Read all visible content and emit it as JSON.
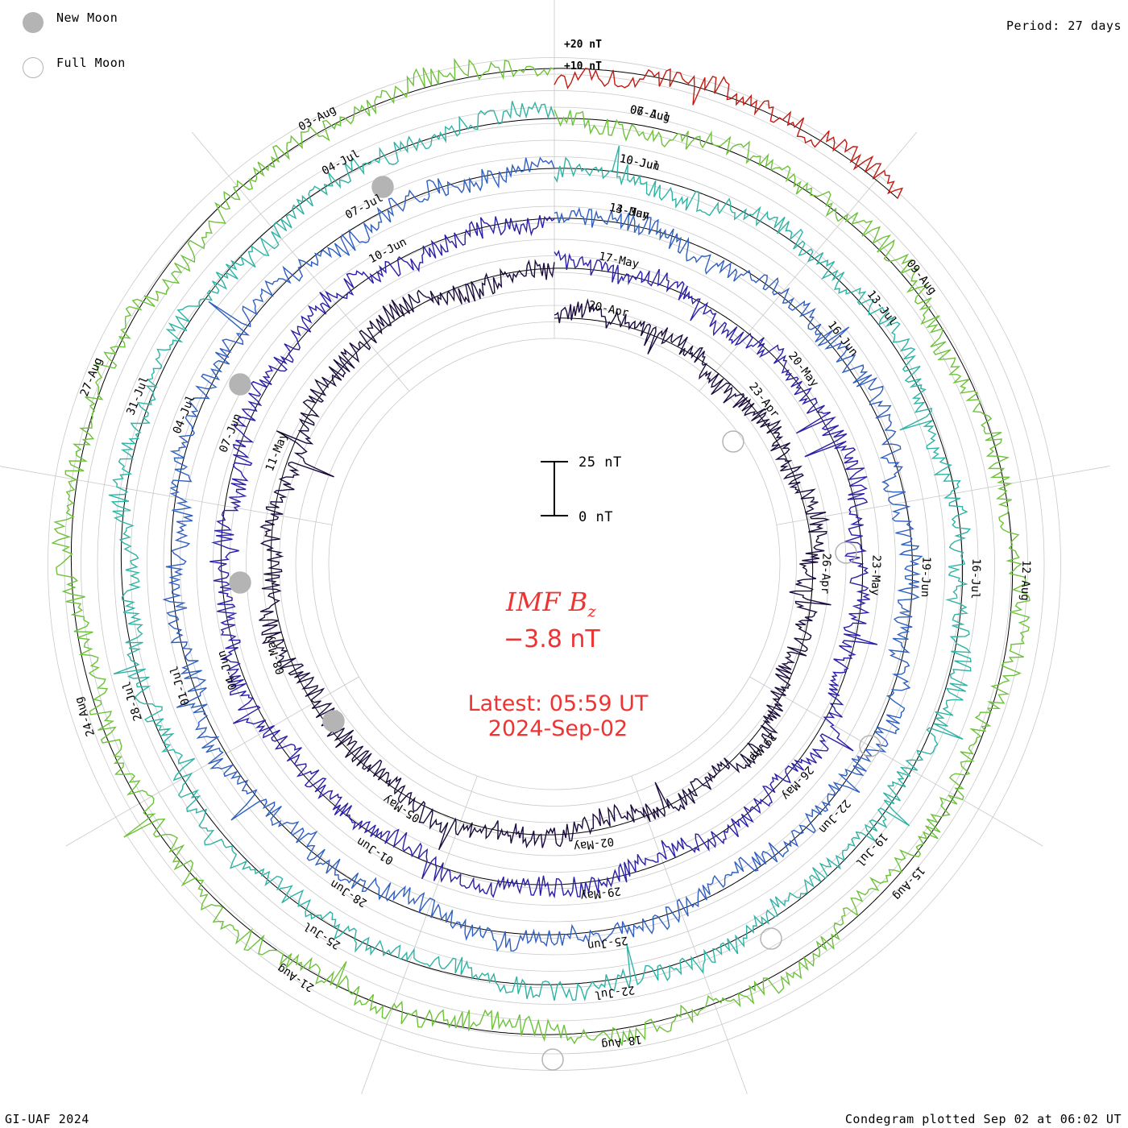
{
  "legend": {
    "new_moon_label": "New Moon",
    "full_moon_label": "Full Moon"
  },
  "period_label": "Period: 27 days",
  "footer": {
    "left": "GI-UAF 2024",
    "right": "Condegram plotted Sep 02 at 06:02 UT"
  },
  "center": {
    "title_main": "IMF B",
    "title_sub": "z",
    "value": "−3.8 nT",
    "latest_line1": "Latest: 05:59 UT",
    "latest_line2": "2024-Sep-02"
  },
  "scale_bar": {
    "top_label": "25 nT",
    "bottom_label": "0 nT"
  },
  "ring_scale": {
    "label_20": "+20 nT",
    "label_10": "+10 nT"
  },
  "chart_data": {
    "type": "line",
    "title": "IMF Bz",
    "period_days": 27,
    "latest_value_nT": -3.8,
    "latest_time": "2024-Sep-02 05:59 UT",
    "colors": {
      "accent": "#ee3333",
      "grid": "#c8c8c8",
      "new_moon": "#b4b4b4"
    },
    "rotations": [
      {
        "start": "2024-04-18",
        "color": "#1a0b3c",
        "date_labels": [
          "20-Apr",
          "23-Apr",
          "26-Apr",
          "29-Apr",
          "02-May",
          "05-May",
          "08-May",
          "11-May"
        ]
      },
      {
        "start": "2024-05-14",
        "color": "#2a1fa8",
        "date_labels": [
          "17-May",
          "20-May",
          "23-May",
          "26-May",
          "29-May",
          "01-Jun",
          "04-Jun",
          "07-Jun",
          "10-Jun",
          "14-May"
        ]
      },
      {
        "start": "2024-06-10",
        "color": "#2f5fc0",
        "date_labels": [
          "13-Jun",
          "16-Jun",
          "19-Jun",
          "22-Jun",
          "25-Jun",
          "28-Jun",
          "01-Jul",
          "04-Jul",
          "07-Jul",
          "10-Jun"
        ]
      },
      {
        "start": "2024-07-07",
        "color": "#2fb3a5",
        "date_labels": [
          "10-Jul",
          "13-Jul",
          "16-Jul",
          "19-Jul",
          "22-Jul",
          "25-Jul",
          "28-Jul",
          "31-Jul",
          "04-Jul",
          "07-Jul"
        ]
      },
      {
        "start": "2024-08-03",
        "color": "#6dc23a",
        "date_labels": [
          "06-Aug",
          "09-Aug",
          "12-Aug",
          "15-Aug",
          "18-Aug",
          "21-Aug",
          "24-Aug",
          "27-Aug",
          "03-Aug"
        ]
      },
      {
        "start": "2024-08-30",
        "color": "#c21a10",
        "date_labels": []
      }
    ],
    "new_moons": [
      "2024-05-08",
      "2024-06-06",
      "2024-07-05",
      "2024-08-04"
    ],
    "full_moons": [
      "2024-04-23",
      "2024-05-23",
      "2024-06-22",
      "2024-07-21",
      "2024-08-19"
    ],
    "ylim_per_ring": [
      -10,
      20
    ]
  }
}
